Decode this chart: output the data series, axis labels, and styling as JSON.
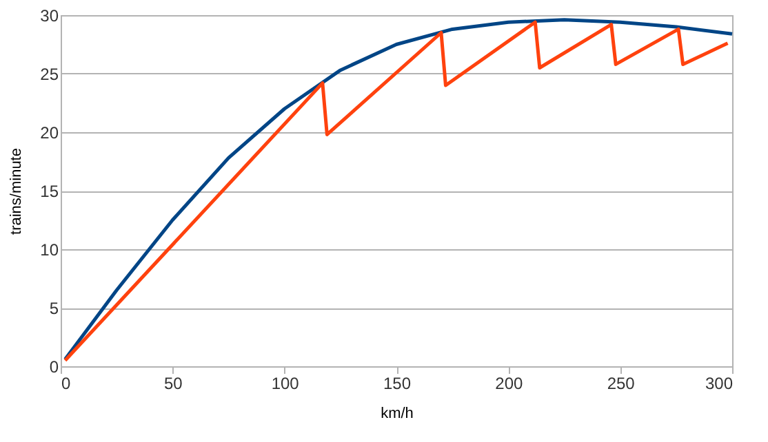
{
  "chart_data": {
    "type": "line",
    "xlabel": "km/h",
    "ylabel": "trains/minute",
    "xlim": [
      0,
      300
    ],
    "xticks": [
      0,
      50,
      100,
      150,
      200,
      250,
      300
    ],
    "ylim": [
      0,
      30
    ],
    "yticks": [
      0,
      5,
      10,
      15,
      20,
      25,
      30
    ],
    "grid": "y",
    "legend": false,
    "marker": "none",
    "line_style": "solid",
    "series": [
      {
        "color": "#004586",
        "x": [
          2,
          25,
          50,
          75,
          100,
          125,
          150,
          175,
          200,
          225,
          250,
          275,
          300
        ],
        "values": [
          0.6,
          6.5,
          12.5,
          17.8,
          22,
          25.3,
          27.5,
          28.8,
          29.4,
          29.6,
          29.4,
          29,
          28.4
        ]
      },
      {
        "color": "#ff420e",
        "x": [
          2,
          117,
          119,
          170,
          172,
          212,
          214,
          246,
          248,
          276,
          278,
          298
        ],
        "values": [
          0.5,
          24.2,
          19.8,
          28.5,
          24,
          29.4,
          25.5,
          29.2,
          25.8,
          28.8,
          25.8,
          27.6
        ]
      }
    ]
  }
}
